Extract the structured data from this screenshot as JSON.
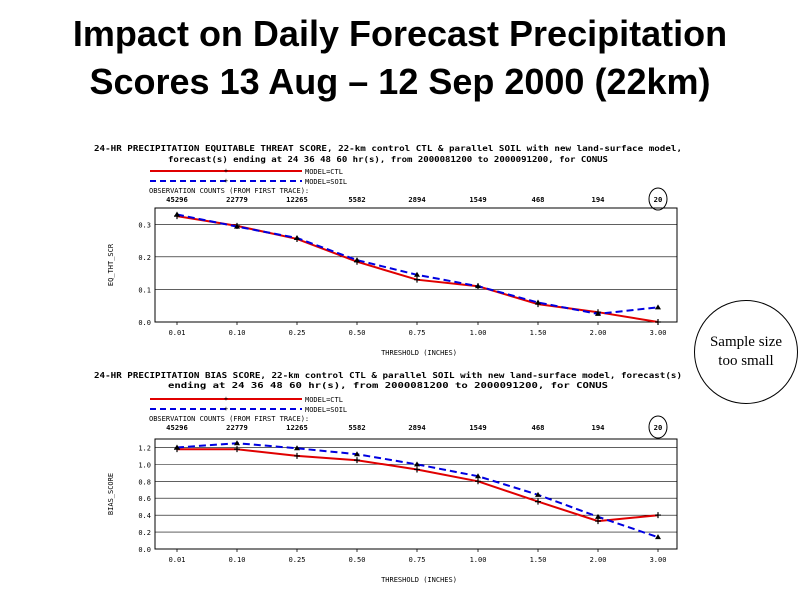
{
  "slide": {
    "title_line1": "Impact on Daily Forecast Precipitation",
    "title_line2": "Scores 13 Aug – 12 Sep 2000 (22km)",
    "callout_line1": "Sample size",
    "callout_line2": "too small"
  },
  "colors": {
    "ctl": "#e00000",
    "soil": "#0000e0",
    "grid": "#000000"
  },
  "chart_data": [
    {
      "type": "line",
      "title_line1": "24-HR PRECIPITATION EQUITABLE THREAT SCORE, 22-km control CTL & parallel SOIL with new land-surface model,",
      "title_line2": "forecast(s) ending at 24 36 48 60 hr(s), from 2000081200 to 2000091200, for CONUS",
      "legend": [
        "MODEL=CTL",
        "MODEL=SOIL"
      ],
      "legend_position": "top-center",
      "counts_label": "OBSERVATION COUNTS (FROM FIRST TRACE):",
      "counts": [
        "45296",
        "22779",
        "12265",
        "5582",
        "2894",
        "1549",
        "468",
        "194",
        "20"
      ],
      "x": [
        "0.01",
        "0.10",
        "0.25",
        "0.50",
        "0.75",
        "1.00",
        "1.50",
        "2.00",
        "3.00"
      ],
      "xlabel": "THRESHOLD (INCHES)",
      "ylabel": "EQ_THT_SCR",
      "ylim": [
        0,
        0.35
      ],
      "yticks": [
        "0.0",
        "0.1",
        "0.2",
        "0.3"
      ],
      "grid": true,
      "series": [
        {
          "name": "MODEL=CTL",
          "values": [
            0.325,
            0.295,
            0.255,
            0.185,
            0.13,
            0.11,
            0.055,
            0.03,
            0.0
          ]
        },
        {
          "name": "MODEL=SOIL",
          "values": [
            0.33,
            0.293,
            0.258,
            0.19,
            0.145,
            0.11,
            0.06,
            0.025,
            0.045
          ]
        }
      ]
    },
    {
      "type": "line",
      "title_line1": "24-HR PRECIPITATION BIAS SCORE, 22-km control CTL & parallel SOIL with new land-surface model, forecast(s)",
      "title_line2": "ending at 24 36 48 60 hr(s), from 2000081200 to 2000091200, for CONUS",
      "legend": [
        "MODEL=CTL",
        "MODEL=SOIL"
      ],
      "legend_position": "top-center",
      "counts_label": "OBSERVATION COUNTS (FROM FIRST TRACE):",
      "counts": [
        "45296",
        "22779",
        "12265",
        "5582",
        "2894",
        "1549",
        "468",
        "194",
        "20"
      ],
      "x": [
        "0.01",
        "0.10",
        "0.25",
        "0.50",
        "0.75",
        "1.00",
        "1.50",
        "2.00",
        "3.00"
      ],
      "xlabel": "THRESHOLD (INCHES)",
      "ylabel": "BIAS_SCORE",
      "ylim": [
        0,
        1.3
      ],
      "yticks": [
        "0.0",
        "0.2",
        "0.4",
        "0.6",
        "0.8",
        "1.0",
        "1.2"
      ],
      "grid": true,
      "series": [
        {
          "name": "MODEL=CTL",
          "values": [
            1.18,
            1.18,
            1.1,
            1.05,
            0.94,
            0.8,
            0.56,
            0.33,
            0.4
          ]
        },
        {
          "name": "MODEL=SOIL",
          "values": [
            1.2,
            1.25,
            1.19,
            1.12,
            1.0,
            0.86,
            0.64,
            0.38,
            0.14
          ]
        }
      ]
    }
  ]
}
